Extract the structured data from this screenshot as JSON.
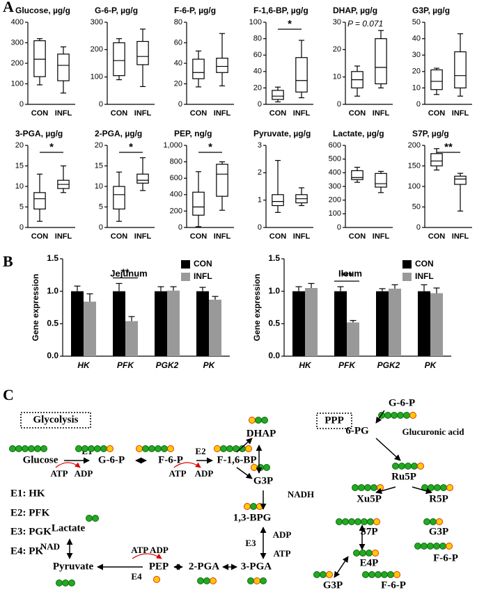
{
  "panels": [
    "A",
    "B",
    "C"
  ],
  "chart_data": [
    {
      "type": "box",
      "title": "Glucose, µg/g",
      "categories": [
        "CON",
        "INFL"
      ],
      "ylim": [
        0,
        400
      ],
      "yticks": [
        0,
        100,
        200,
        300,
        400
      ],
      "color": "#000000",
      "boxes": [
        {
          "min": 95,
          "q1": 135,
          "median": 220,
          "q3": 310,
          "max": 320
        },
        {
          "min": 55,
          "q1": 115,
          "median": 190,
          "q3": 245,
          "max": 280
        }
      ]
    },
    {
      "type": "box",
      "title": "G-6-P, µg/g",
      "categories": [
        "CON",
        "INFL"
      ],
      "ylim": [
        0,
        300
      ],
      "yticks": [
        0,
        100,
        200,
        300
      ],
      "color": "#000000",
      "boxes": [
        {
          "min": 90,
          "q1": 105,
          "median": 160,
          "q3": 225,
          "max": 240
        },
        {
          "min": 65,
          "q1": 145,
          "median": 175,
          "q3": 230,
          "max": 275
        }
      ]
    },
    {
      "type": "box",
      "title": "F-6-P, µg/g",
      "categories": [
        "CON",
        "INFL"
      ],
      "ylim": [
        0,
        80
      ],
      "yticks": [
        0,
        20,
        40,
        60,
        80
      ],
      "color": "#000000",
      "boxes": [
        {
          "min": 17,
          "q1": 25,
          "median": 31,
          "q3": 44,
          "max": 52
        },
        {
          "min": 18,
          "q1": 31,
          "median": 37,
          "q3": 45,
          "max": 69
        }
      ]
    },
    {
      "type": "box",
      "title": "F-1,6-BP, µg/g",
      "categories": [
        "CON",
        "INFL"
      ],
      "ylim": [
        0,
        100
      ],
      "yticks": [
        0,
        20,
        40,
        60,
        80,
        100
      ],
      "color": "#000000",
      "annotation": "*",
      "boxes": [
        {
          "min": 3,
          "q1": 6,
          "median": 10,
          "q3": 17,
          "max": 21
        },
        {
          "min": 8,
          "q1": 15,
          "median": 29,
          "q3": 57,
          "max": 78
        }
      ]
    },
    {
      "type": "box",
      "title": "DHAP, µg/g",
      "categories": [
        "CON",
        "INFL"
      ],
      "ylim": [
        0,
        30
      ],
      "yticks": [
        0,
        10,
        20,
        30
      ],
      "color": "#000000",
      "annotation": "P = 0.071",
      "boxes": [
        {
          "min": 3,
          "q1": 6,
          "median": 9,
          "q3": 12,
          "max": 14
        },
        {
          "min": 6,
          "q1": 7.5,
          "median": 13.5,
          "q3": 24,
          "max": 27
        }
      ]
    },
    {
      "type": "box",
      "title": "G3P, µg/g",
      "categories": [
        "CON",
        "INFL"
      ],
      "ylim": [
        0,
        50
      ],
      "yticks": [
        0,
        10,
        20,
        30,
        40,
        50
      ],
      "color": "#000000",
      "boxes": [
        {
          "min": 6,
          "q1": 9,
          "median": 14,
          "q3": 21,
          "max": 22
        },
        {
          "min": 5,
          "q1": 10,
          "median": 17.5,
          "q3": 32,
          "max": 43
        }
      ]
    },
    {
      "type": "box",
      "title": "3-PGA, µg/g",
      "categories": [
        "CON",
        "INFL"
      ],
      "ylim": [
        0,
        20
      ],
      "yticks": [
        0,
        5,
        10,
        15,
        20
      ],
      "color": "#000000",
      "annotation": "*",
      "boxes": [
        {
          "min": 1.5,
          "q1": 4.5,
          "median": 7,
          "q3": 8.5,
          "max": 13
        },
        {
          "min": 8.5,
          "q1": 9.5,
          "median": 10.5,
          "q3": 11.5,
          "max": 15
        }
      ]
    },
    {
      "type": "box",
      "title": "2-PGA, µg/g",
      "categories": [
        "CON",
        "INFL"
      ],
      "ylim": [
        0,
        20
      ],
      "yticks": [
        0,
        5,
        10,
        15,
        20
      ],
      "color": "#000000",
      "annotation": "*",
      "boxes": [
        {
          "min": 1.5,
          "q1": 4.5,
          "median": 8,
          "q3": 10,
          "max": 13.5
        },
        {
          "min": 9,
          "q1": 10.8,
          "median": 11.5,
          "q3": 13,
          "max": 17
        }
      ]
    },
    {
      "type": "box",
      "title": "PEP, ng/g",
      "categories": [
        "CON",
        "INFL"
      ],
      "ylim": [
        0,
        1000
      ],
      "yticks": [
        0,
        200,
        400,
        600,
        800,
        {
          "value": 1000,
          "label": "1,000"
        }
      ],
      "color": "#000000",
      "annotation": "*",
      "boxes": [
        {
          "min": 10,
          "q1": 150,
          "median": 250,
          "q3": 430,
          "max": 680
        },
        {
          "min": 210,
          "q1": 380,
          "median": 650,
          "q3": 770,
          "max": 800
        }
      ]
    },
    {
      "type": "box",
      "title": "Pyruvate, µg/g",
      "categories": [
        "CON",
        "INFL"
      ],
      "ylim": [
        0,
        3
      ],
      "yticks": [
        0,
        1,
        2,
        3
      ],
      "color": "#000000",
      "boxes": [
        {
          "min": 0.55,
          "q1": 0.8,
          "median": 0.95,
          "q3": 1.2,
          "max": 2.45
        },
        {
          "min": 0.8,
          "q1": 0.9,
          "median": 1.05,
          "q3": 1.2,
          "max": 1.45
        }
      ]
    },
    {
      "type": "box",
      "title": "Lactate, µg/g",
      "categories": [
        "CON",
        "INFL"
      ],
      "ylim": [
        0,
        600
      ],
      "yticks": [
        0,
        100,
        200,
        300,
        400,
        500,
        600
      ],
      "color": "#000000",
      "boxes": [
        {
          "min": 330,
          "q1": 350,
          "median": 365,
          "q3": 415,
          "max": 440
        },
        {
          "min": 255,
          "q1": 295,
          "median": 320,
          "q3": 395,
          "max": 410
        }
      ]
    },
    {
      "type": "box",
      "title": "S7P, µg/g",
      "categories": [
        "CON",
        "INFL"
      ],
      "ylim": [
        0,
        200
      ],
      "yticks": [
        0,
        50,
        100,
        150,
        200
      ],
      "color": "#000000",
      "annotation": "**",
      "boxes": [
        {
          "min": 140,
          "q1": 150,
          "median": 162,
          "q3": 180,
          "max": 192
        },
        {
          "min": 40,
          "q1": 105,
          "median": 118,
          "q3": 125,
          "max": 132
        }
      ]
    },
    {
      "type": "bar",
      "title": "Jejunum",
      "ylabel": "Gene expression",
      "categories": [
        "HK",
        "PFK",
        "PGK2",
        "PK"
      ],
      "legend": "top-right",
      "annotation": "**",
      "ylim": [
        0,
        1.5
      ],
      "yticks": [
        {
          "value": 0,
          "label": "0.0"
        },
        0.5,
        {
          "value": 1,
          "label": "1.0"
        },
        1.5
      ],
      "series": [
        {
          "name": "CON",
          "color": "#000000",
          "values": [
            1.0,
            1.0,
            1.0,
            1.0
          ],
          "errors": [
            0.08,
            0.12,
            0.07,
            0.06
          ]
        },
        {
          "name": "INFL",
          "color": "#999999",
          "values": [
            0.84,
            0.54,
            1.01,
            0.87
          ],
          "errors": [
            0.12,
            0.07,
            0.06,
            0.05
          ]
        }
      ]
    },
    {
      "type": "bar",
      "title": "Ileum",
      "ylabel": "Gene expression",
      "categories": [
        "HK",
        "PFK",
        "PGK2",
        "PK"
      ],
      "legend": "top-right",
      "annotation": "***",
      "ylim": [
        0,
        1.5
      ],
      "yticks": [
        {
          "value": 0,
          "label": "0.0"
        },
        0.5,
        {
          "value": 1,
          "label": "1.0"
        },
        1.5
      ],
      "series": [
        {
          "name": "CON",
          "color": "#000000",
          "values": [
            1.0,
            1.0,
            1.0,
            1.0
          ],
          "errors": [
            0.07,
            0.07,
            0.04,
            0.1
          ]
        },
        {
          "name": "INFL",
          "color": "#999999",
          "values": [
            1.05,
            0.52,
            1.04,
            0.97
          ],
          "errors": [
            0.07,
            0.03,
            0.06,
            0.08
          ]
        }
      ]
    }
  ],
  "diagram": {
    "labels": [
      "Glycolysis",
      "PPP",
      "Glucose",
      "E1",
      "G-6-P",
      "F-6-P",
      "E2",
      "F-1,6-BP",
      "DHAP",
      "G3P",
      "NADH",
      "1,3-BPG",
      "E3",
      "ADP",
      "ATP",
      "3-PGA",
      "2-PGA",
      "PEP",
      "ATP ADP",
      "E4",
      "Pyruvate",
      "Lactate",
      "NAD",
      "ATP",
      "ADP",
      "ATP",
      "ADP",
      "E1: HK",
      "E2: PFK",
      "E3: PGK",
      "E4: PK",
      "G-6-P",
      "6-PG",
      "Glucuronic acid",
      "Ru5P",
      "Xu5P",
      "R5P",
      "S7P",
      "G3P",
      "E4P",
      "F-6-P",
      "G3P",
      "F-6-P"
    ]
  }
}
